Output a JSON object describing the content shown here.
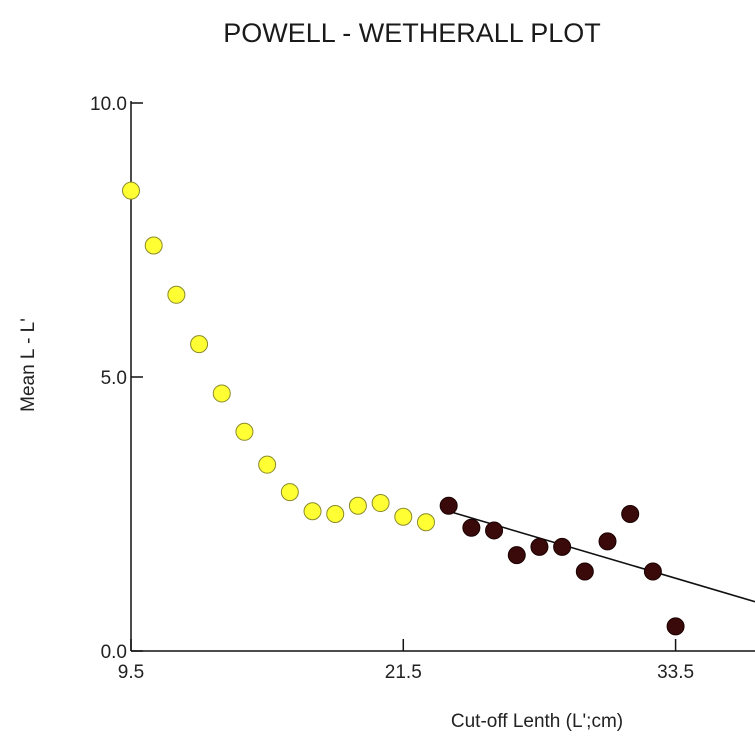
{
  "chart_data": {
    "type": "scatter",
    "title": "POWELL - WETHERALL PLOT",
    "xlabel": "Cut-off Lenth (L';cm)",
    "ylabel": "Mean L - L'",
    "xlim": [
      9.5,
      37.0
    ],
    "ylim": [
      0.0,
      10.0
    ],
    "x_ticks": [
      "9.5",
      "21.5",
      "33.5"
    ],
    "y_ticks": [
      "0.0",
      "5.0",
      "10.0"
    ],
    "grid": false,
    "series": [
      {
        "marker": "circle",
        "color": "#ffff33",
        "points": [
          {
            "x": 9.5,
            "y": 8.4
          },
          {
            "x": 10.5,
            "y": 7.4
          },
          {
            "x": 11.5,
            "y": 6.5
          },
          {
            "x": 12.5,
            "y": 5.6
          },
          {
            "x": 13.5,
            "y": 4.7
          },
          {
            "x": 14.5,
            "y": 4.0
          },
          {
            "x": 15.5,
            "y": 3.4
          },
          {
            "x": 16.5,
            "y": 2.9
          },
          {
            "x": 17.5,
            "y": 2.55
          },
          {
            "x": 18.5,
            "y": 2.5
          },
          {
            "x": 19.5,
            "y": 2.65
          },
          {
            "x": 20.5,
            "y": 2.7
          },
          {
            "x": 21.5,
            "y": 2.45
          },
          {
            "x": 22.5,
            "y": 2.35
          }
        ]
      },
      {
        "marker": "circle",
        "color": "#3a0a0a",
        "points": [
          {
            "x": 23.5,
            "y": 2.65
          },
          {
            "x": 24.5,
            "y": 2.25
          },
          {
            "x": 25.5,
            "y": 2.2
          },
          {
            "x": 26.5,
            "y": 1.75
          },
          {
            "x": 27.5,
            "y": 1.9
          },
          {
            "x": 28.5,
            "y": 1.9
          },
          {
            "x": 29.5,
            "y": 1.45
          },
          {
            "x": 30.5,
            "y": 2.0
          },
          {
            "x": 31.5,
            "y": 2.5
          },
          {
            "x": 32.5,
            "y": 1.45
          },
          {
            "x": 33.5,
            "y": 0.45
          }
        ]
      }
    ],
    "fit_line": {
      "x": [
        23.5,
        37.0
      ],
      "y": [
        2.55,
        0.9
      ],
      "color": "#111111"
    }
  }
}
